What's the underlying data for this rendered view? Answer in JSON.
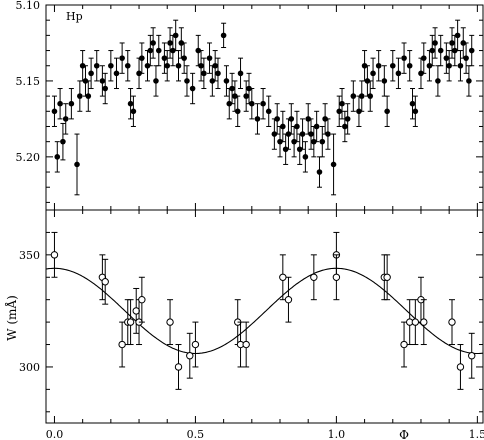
{
  "chart_data": [
    {
      "type": "scatter",
      "panel_label": "Hp",
      "ylabel": "",
      "xlabel": "",
      "xlim": [
        -0.03,
        1.52
      ],
      "ylim": [
        5.235,
        5.1
      ],
      "y_inverted": true,
      "yticks": [
        "5.10",
        "5.15",
        "5.20"
      ],
      "marker": "filled-circle",
      "error_bars": true,
      "points": [
        {
          "x": 0.0,
          "y": 5.17,
          "e": 0.01
        },
        {
          "x": 0.01,
          "y": 5.2,
          "e": 0.01
        },
        {
          "x": 0.02,
          "y": 5.165,
          "e": 0.01
        },
        {
          "x": 0.03,
          "y": 5.19,
          "e": 0.012
        },
        {
          "x": 0.04,
          "y": 5.175,
          "e": 0.01
        },
        {
          "x": 0.06,
          "y": 5.165,
          "e": 0.01
        },
        {
          "x": 0.08,
          "y": 5.205,
          "e": 0.02
        },
        {
          "x": 0.09,
          "y": 5.16,
          "e": 0.01
        },
        {
          "x": 0.1,
          "y": 5.14,
          "e": 0.01
        },
        {
          "x": 0.11,
          "y": 5.15,
          "e": 0.01
        },
        {
          "x": 0.12,
          "y": 5.16,
          "e": 0.01
        },
        {
          "x": 0.13,
          "y": 5.145,
          "e": 0.01
        },
        {
          "x": 0.15,
          "y": 5.14,
          "e": 0.01
        },
        {
          "x": 0.17,
          "y": 5.15,
          "e": 0.01
        },
        {
          "x": 0.18,
          "y": 5.155,
          "e": 0.01
        },
        {
          "x": 0.2,
          "y": 5.14,
          "e": 0.01
        },
        {
          "x": 0.22,
          "y": 5.145,
          "e": 0.01
        },
        {
          "x": 0.24,
          "y": 5.135,
          "e": 0.01
        },
        {
          "x": 0.26,
          "y": 5.14,
          "e": 0.01
        },
        {
          "x": 0.27,
          "y": 5.165,
          "e": 0.01
        },
        {
          "x": 0.28,
          "y": 5.17,
          "e": 0.01
        },
        {
          "x": 0.3,
          "y": 5.145,
          "e": 0.01
        },
        {
          "x": 0.31,
          "y": 5.135,
          "e": 0.01
        },
        {
          "x": 0.33,
          "y": 5.14,
          "e": 0.01
        },
        {
          "x": 0.34,
          "y": 5.13,
          "e": 0.01
        },
        {
          "x": 0.35,
          "y": 5.125,
          "e": 0.01
        },
        {
          "x": 0.36,
          "y": 5.15,
          "e": 0.01
        },
        {
          "x": 0.37,
          "y": 5.13,
          "e": 0.01
        },
        {
          "x": 0.39,
          "y": 5.135,
          "e": 0.01
        },
        {
          "x": 0.4,
          "y": 5.14,
          "e": 0.01
        },
        {
          "x": 0.41,
          "y": 5.125,
          "e": 0.01
        },
        {
          "x": 0.42,
          "y": 5.13,
          "e": 0.01
        },
        {
          "x": 0.43,
          "y": 5.12,
          "e": 0.01
        },
        {
          "x": 0.44,
          "y": 5.14,
          "e": 0.01
        },
        {
          "x": 0.45,
          "y": 5.125,
          "e": 0.01
        },
        {
          "x": 0.46,
          "y": 5.135,
          "e": 0.01
        },
        {
          "x": 0.47,
          "y": 5.15,
          "e": 0.01
        },
        {
          "x": 0.49,
          "y": 5.155,
          "e": 0.01
        },
        {
          "x": 0.51,
          "y": 5.13,
          "e": 0.01
        },
        {
          "x": 0.52,
          "y": 5.14,
          "e": 0.01
        },
        {
          "x": 0.53,
          "y": 5.145,
          "e": 0.01
        },
        {
          "x": 0.55,
          "y": 5.135,
          "e": 0.01
        },
        {
          "x": 0.56,
          "y": 5.15,
          "e": 0.01
        },
        {
          "x": 0.57,
          "y": 5.14,
          "e": 0.01
        },
        {
          "x": 0.58,
          "y": 5.145,
          "e": 0.01
        },
        {
          "x": 0.6,
          "y": 5.12,
          "e": 0.008
        },
        {
          "x": 0.61,
          "y": 5.15,
          "e": 0.01
        },
        {
          "x": 0.62,
          "y": 5.165,
          "e": 0.01
        },
        {
          "x": 0.63,
          "y": 5.155,
          "e": 0.01
        },
        {
          "x": 0.64,
          "y": 5.16,
          "e": 0.01
        },
        {
          "x": 0.65,
          "y": 5.17,
          "e": 0.01
        },
        {
          "x": 0.66,
          "y": 5.145,
          "e": 0.01
        },
        {
          "x": 0.68,
          "y": 5.16,
          "e": 0.01
        },
        {
          "x": 0.69,
          "y": 5.155,
          "e": 0.01
        },
        {
          "x": 0.7,
          "y": 5.165,
          "e": 0.01
        },
        {
          "x": 0.72,
          "y": 5.175,
          "e": 0.01
        },
        {
          "x": 0.74,
          "y": 5.165,
          "e": 0.01
        },
        {
          "x": 0.76,
          "y": 5.17,
          "e": 0.01
        },
        {
          "x": 0.78,
          "y": 5.185,
          "e": 0.01
        },
        {
          "x": 0.79,
          "y": 5.175,
          "e": 0.01
        },
        {
          "x": 0.8,
          "y": 5.19,
          "e": 0.01
        },
        {
          "x": 0.81,
          "y": 5.18,
          "e": 0.01
        },
        {
          "x": 0.82,
          "y": 5.195,
          "e": 0.01
        },
        {
          "x": 0.83,
          "y": 5.185,
          "e": 0.01
        },
        {
          "x": 0.84,
          "y": 5.175,
          "e": 0.01
        },
        {
          "x": 0.85,
          "y": 5.19,
          "e": 0.01
        },
        {
          "x": 0.86,
          "y": 5.18,
          "e": 0.01
        },
        {
          "x": 0.87,
          "y": 5.195,
          "e": 0.01
        },
        {
          "x": 0.88,
          "y": 5.185,
          "e": 0.01
        },
        {
          "x": 0.89,
          "y": 5.2,
          "e": 0.01
        },
        {
          "x": 0.9,
          "y": 5.175,
          "e": 0.01
        },
        {
          "x": 0.91,
          "y": 5.185,
          "e": 0.01
        },
        {
          "x": 0.92,
          "y": 5.19,
          "e": 0.01
        },
        {
          "x": 0.93,
          "y": 5.18,
          "e": 0.01
        },
        {
          "x": 0.94,
          "y": 5.21,
          "e": 0.01
        },
        {
          "x": 0.95,
          "y": 5.19,
          "e": 0.01
        },
        {
          "x": 0.96,
          "y": 5.175,
          "e": 0.01
        },
        {
          "x": 0.97,
          "y": 5.185,
          "e": 0.01
        },
        {
          "x": 0.99,
          "y": 5.205,
          "e": 0.02
        },
        {
          "x": 1.01,
          "y": 5.17,
          "e": 0.01
        },
        {
          "x": 1.02,
          "y": 5.165,
          "e": 0.01
        },
        {
          "x": 1.03,
          "y": 5.18,
          "e": 0.01
        },
        {
          "x": 1.04,
          "y": 5.175,
          "e": 0.01
        },
        {
          "x": 1.06,
          "y": 5.16,
          "e": 0.01
        },
        {
          "x": 1.08,
          "y": 5.17,
          "e": 0.01
        },
        {
          "x": 1.09,
          "y": 5.16,
          "e": 0.01
        },
        {
          "x": 1.1,
          "y": 5.14,
          "e": 0.01
        },
        {
          "x": 1.11,
          "y": 5.15,
          "e": 0.01
        },
        {
          "x": 1.12,
          "y": 5.16,
          "e": 0.01
        },
        {
          "x": 1.13,
          "y": 5.145,
          "e": 0.01
        },
        {
          "x": 1.15,
          "y": 5.14,
          "e": 0.01
        },
        {
          "x": 1.17,
          "y": 5.15,
          "e": 0.01
        },
        {
          "x": 1.18,
          "y": 5.17,
          "e": 0.01
        },
        {
          "x": 1.2,
          "y": 5.14,
          "e": 0.01
        },
        {
          "x": 1.22,
          "y": 5.145,
          "e": 0.01
        },
        {
          "x": 1.24,
          "y": 5.135,
          "e": 0.01
        },
        {
          "x": 1.26,
          "y": 5.14,
          "e": 0.01
        },
        {
          "x": 1.27,
          "y": 5.165,
          "e": 0.01
        },
        {
          "x": 1.28,
          "y": 5.17,
          "e": 0.01
        },
        {
          "x": 1.3,
          "y": 5.145,
          "e": 0.01
        },
        {
          "x": 1.31,
          "y": 5.135,
          "e": 0.01
        },
        {
          "x": 1.33,
          "y": 5.14,
          "e": 0.01
        },
        {
          "x": 1.34,
          "y": 5.13,
          "e": 0.01
        },
        {
          "x": 1.35,
          "y": 5.125,
          "e": 0.01
        },
        {
          "x": 1.36,
          "y": 5.15,
          "e": 0.01
        },
        {
          "x": 1.37,
          "y": 5.13,
          "e": 0.01
        },
        {
          "x": 1.39,
          "y": 5.135,
          "e": 0.01
        },
        {
          "x": 1.4,
          "y": 5.14,
          "e": 0.01
        },
        {
          "x": 1.41,
          "y": 5.125,
          "e": 0.01
        },
        {
          "x": 1.42,
          "y": 5.13,
          "e": 0.01
        },
        {
          "x": 1.43,
          "y": 5.12,
          "e": 0.01
        },
        {
          "x": 1.44,
          "y": 5.14,
          "e": 0.01
        },
        {
          "x": 1.45,
          "y": 5.125,
          "e": 0.01
        },
        {
          "x": 1.46,
          "y": 5.135,
          "e": 0.01
        },
        {
          "x": 1.47,
          "y": 5.15,
          "e": 0.01
        },
        {
          "x": 1.48,
          "y": 5.13,
          "e": 0.01
        }
      ]
    },
    {
      "type": "scatter",
      "ylabel": "W (mÅ)",
      "xlabel": "Φ",
      "xlim": [
        -0.03,
        1.52
      ],
      "ylim": [
        275,
        370
      ],
      "yticks": [
        "300",
        "350"
      ],
      "xticks": [
        "0.0",
        "0.5",
        "1.0",
        "1.5"
      ],
      "marker": "open-circle",
      "error_bars": true,
      "fit": "sinusoid",
      "fit_mean": 325,
      "fit_amplitude": 19,
      "fit_period": 1.0,
      "fit_phase_of_max": 0.0,
      "points": [
        {
          "x": 0.0,
          "y": 350,
          "e": 10
        },
        {
          "x": 0.17,
          "y": 340,
          "e": 10
        },
        {
          "x": 0.18,
          "y": 338,
          "e": 10
        },
        {
          "x": 0.24,
          "y": 310,
          "e": 10
        },
        {
          "x": 0.26,
          "y": 320,
          "e": 10
        },
        {
          "x": 0.27,
          "y": 320,
          "e": 10
        },
        {
          "x": 0.29,
          "y": 325,
          "e": 10
        },
        {
          "x": 0.3,
          "y": 320,
          "e": 10
        },
        {
          "x": 0.31,
          "y": 330,
          "e": 10
        },
        {
          "x": 0.41,
          "y": 320,
          "e": 10
        },
        {
          "x": 0.44,
          "y": 300,
          "e": 10
        },
        {
          "x": 0.48,
          "y": 305,
          "e": 10
        },
        {
          "x": 0.5,
          "y": 310,
          "e": 10
        },
        {
          "x": 0.65,
          "y": 320,
          "e": 10
        },
        {
          "x": 0.66,
          "y": 310,
          "e": 10
        },
        {
          "x": 0.68,
          "y": 310,
          "e": 10
        },
        {
          "x": 0.81,
          "y": 340,
          "e": 10
        },
        {
          "x": 0.83,
          "y": 330,
          "e": 10
        },
        {
          "x": 0.92,
          "y": 340,
          "e": 10
        },
        {
          "x": 1.0,
          "y": 350,
          "e": 10
        },
        {
          "x": 1.0,
          "y": 340,
          "e": 10
        },
        {
          "x": 1.17,
          "y": 340,
          "e": 10
        },
        {
          "x": 1.18,
          "y": 340,
          "e": 10
        },
        {
          "x": 1.24,
          "y": 310,
          "e": 10
        },
        {
          "x": 1.26,
          "y": 320,
          "e": 10
        },
        {
          "x": 1.28,
          "y": 320,
          "e": 10
        },
        {
          "x": 1.3,
          "y": 330,
          "e": 10
        },
        {
          "x": 1.31,
          "y": 320,
          "e": 10
        },
        {
          "x": 1.41,
          "y": 320,
          "e": 10
        },
        {
          "x": 1.44,
          "y": 300,
          "e": 10
        },
        {
          "x": 1.48,
          "y": 305,
          "e": 10
        }
      ]
    }
  ]
}
